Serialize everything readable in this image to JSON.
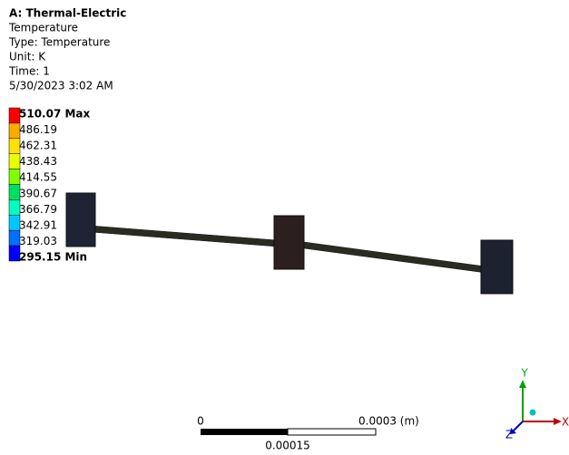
{
  "header": {
    "title": "A: Thermal-Electric",
    "lines": [
      "Temperature",
      "Type: Temperature",
      "Unit: K",
      "Time: 1",
      "5/30/2023 3:02 AM"
    ]
  },
  "legend": {
    "labels": [
      "510.07 Max",
      "486.19",
      "462.31",
      "438.43",
      "414.55",
      "390.67",
      "366.79",
      "342.91",
      "319.03",
      "295.15 Min"
    ],
    "colors": [
      "#ff0000",
      "#ffaa00",
      "#ffe000",
      "#eaff00",
      "#80ff00",
      "#00e060",
      "#00ffc0",
      "#00c8ff",
      "#0070ff",
      "#0000ff"
    ]
  },
  "scale_bar": {
    "start": "0",
    "end": "0.0003 (m)",
    "middle": "0.00015"
  },
  "triad": {
    "y": "Y",
    "x": "X",
    "z": "Z"
  }
}
